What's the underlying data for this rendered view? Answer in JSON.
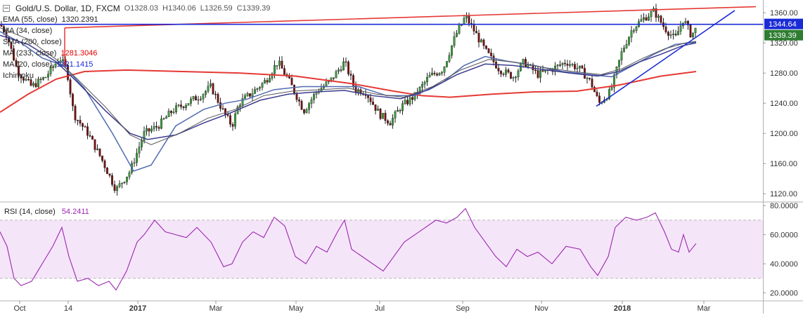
{
  "header": {
    "title": "Gold/U.S. Dollar, 1D, FXCM",
    "ohlc": [
      "O1328.03",
      "H1340.06",
      "L1326.59",
      "C1339.39"
    ]
  },
  "legend": [
    {
      "name": "EMA (55, close)",
      "value": "1320.2391",
      "color": "#333333"
    },
    {
      "name": "MA (34, close)",
      "value": "",
      "color": "#333333"
    },
    {
      "name": "SMA (200, close)",
      "value": "",
      "color": "#333333"
    },
    {
      "name": "MA (233, close)",
      "value": "1281.3046",
      "color": "#e00000"
    },
    {
      "name": "MA (20, close)",
      "value": "1321.1415",
      "color": "#1a2bd6"
    },
    {
      "name": "Ichimoku",
      "value": "",
      "color": "#333333"
    }
  ],
  "rsi_label": {
    "name": "RSI (14, close)",
    "value": "54.2411"
  },
  "price_tags": [
    {
      "text": "1344.64",
      "price": 1344.64,
      "bg": "#1a2bd6"
    },
    {
      "text": "1339.39",
      "price": 1339.39,
      "bg": "#2e7d32"
    }
  ],
  "chart_data": [
    {
      "type": "candlestick",
      "title": "Gold/U.S. Dollar, 1D, FXCM",
      "ylim": [
        1110,
        1375
      ],
      "y_ticks": [
        "1120.00",
        "1160.00",
        "1200.00",
        "1240.00",
        "1280.00",
        "1320.00",
        "1360.00"
      ],
      "x_ticks": [
        "Oct",
        "14",
        "2017",
        "Mar",
        "May",
        "Jul",
        "Sep",
        "Nov",
        "2018",
        "Mar"
      ],
      "price_path": [
        [
          0,
          1345
        ],
        [
          10,
          1330
        ],
        [
          25,
          1282
        ],
        [
          45,
          1262
        ],
        [
          65,
          1275
        ],
        [
          85,
          1300
        ],
        [
          95,
          1285
        ],
        [
          105,
          1225
        ],
        [
          125,
          1200
        ],
        [
          145,
          1165
        ],
        [
          165,
          1125
        ],
        [
          185,
          1150
        ],
        [
          205,
          1200
        ],
        [
          225,
          1210
        ],
        [
          245,
          1230
        ],
        [
          265,
          1240
        ],
        [
          285,
          1250
        ],
        [
          300,
          1262
        ],
        [
          318,
          1228
        ],
        [
          330,
          1210
        ],
        [
          340,
          1240
        ],
        [
          360,
          1255
        ],
        [
          378,
          1270
        ],
        [
          395,
          1295
        ],
        [
          412,
          1268
        ],
        [
          432,
          1230
        ],
        [
          450,
          1255
        ],
        [
          470,
          1270
        ],
        [
          490,
          1295
        ],
        [
          505,
          1258
        ],
        [
          520,
          1255
        ],
        [
          540,
          1225
        ],
        [
          555,
          1215
        ],
        [
          570,
          1235
        ],
        [
          590,
          1250
        ],
        [
          610,
          1275
        ],
        [
          630,
          1285
        ],
        [
          648,
          1330
        ],
        [
          662,
          1355
        ],
        [
          675,
          1335
        ],
        [
          690,
          1310
        ],
        [
          710,
          1285
        ],
        [
          730,
          1275
        ],
        [
          745,
          1295
        ],
        [
          765,
          1278
        ],
        [
          785,
          1285
        ],
        [
          805,
          1295
        ],
        [
          825,
          1285
        ],
        [
          840,
          1268
        ],
        [
          852,
          1240
        ],
        [
          868,
          1255
        ],
        [
          885,
          1310
        ],
        [
          900,
          1340
        ],
        [
          915,
          1352
        ],
        [
          930,
          1362
        ],
        [
          945,
          1340
        ],
        [
          960,
          1325
        ],
        [
          972,
          1352
        ],
        [
          983,
          1330
        ],
        [
          990,
          1339
        ]
      ],
      "series": [
        {
          "name": "MA (233, close)",
          "color": "#e53935",
          "width": 2,
          "points": [
            [
              0,
              1228
            ],
            [
              40,
              1252
            ],
            [
              80,
              1272
            ],
            [
              120,
              1282
            ],
            [
              180,
              1284
            ],
            [
              260,
              1282
            ],
            [
              340,
              1280
            ],
            [
              420,
              1276
            ],
            [
              500,
              1266
            ],
            [
              560,
              1256
            ],
            [
              600,
              1250
            ],
            [
              640,
              1248
            ],
            [
              700,
              1252
            ],
            [
              760,
              1255
            ],
            [
              820,
              1256
            ],
            [
              880,
              1264
            ],
            [
              940,
              1276
            ],
            [
              990,
              1282
            ]
          ]
        },
        {
          "name": "MA (20, close)",
          "color": "#4f6bb0",
          "width": 1.5,
          "points": [
            [
              0,
              1335
            ],
            [
              30,
              1320
            ],
            [
              60,
              1300
            ],
            [
              90,
              1290
            ],
            [
              120,
              1260
            ],
            [
              160,
              1200
            ],
            [
              190,
              1150
            ],
            [
              215,
              1158
            ],
            [
              250,
              1210
            ],
            [
              290,
              1232
            ],
            [
              320,
              1240
            ],
            [
              350,
              1245
            ],
            [
              390,
              1258
            ],
            [
              430,
              1262
            ],
            [
              470,
              1262
            ],
            [
              510,
              1262
            ],
            [
              550,
              1250
            ],
            [
              590,
              1250
            ],
            [
              630,
              1268
            ],
            [
              660,
              1290
            ],
            [
              690,
              1302
            ],
            [
              720,
              1296
            ],
            [
              760,
              1290
            ],
            [
              800,
              1282
            ],
            [
              840,
              1278
            ],
            [
              870,
              1275
            ],
            [
              900,
              1290
            ],
            [
              930,
              1305
            ],
            [
              960,
              1318
            ],
            [
              990,
              1321
            ]
          ]
        },
        {
          "name": "EMA (55, close)",
          "color": "#3b3b8f",
          "width": 1.5,
          "points": [
            [
              0,
              1330
            ],
            [
              40,
              1318
            ],
            [
              80,
              1295
            ],
            [
              110,
              1268
            ],
            [
              150,
              1230
            ],
            [
              185,
              1200
            ],
            [
              210,
              1192
            ],
            [
              250,
              1198
            ],
            [
              290,
              1214
            ],
            [
              330,
              1228
            ],
            [
              370,
              1244
            ],
            [
              410,
              1252
            ],
            [
              450,
              1255
            ],
            [
              490,
              1257
            ],
            [
              530,
              1250
            ],
            [
              570,
              1246
            ],
            [
              610,
              1258
            ],
            [
              650,
              1278
            ],
            [
              690,
              1292
            ],
            [
              730,
              1290
            ],
            [
              770,
              1285
            ],
            [
              810,
              1280
            ],
            [
              850,
              1276
            ],
            [
              880,
              1282
            ],
            [
              910,
              1295
            ],
            [
              940,
              1305
            ],
            [
              970,
              1316
            ],
            [
              990,
              1320
            ]
          ]
        },
        {
          "name": "MA (34, close)",
          "color": "#555555",
          "width": 1,
          "points": [
            [
              0,
              1340
            ],
            [
              40,
              1325
            ],
            [
              80,
              1298
            ],
            [
              110,
              1272
            ],
            [
              150,
              1235
            ],
            [
              185,
              1198
            ],
            [
              215,
              1185
            ],
            [
              255,
              1200
            ],
            [
              295,
              1220
            ],
            [
              335,
              1232
            ],
            [
              375,
              1250
            ],
            [
              415,
              1256
            ],
            [
              455,
              1258
            ],
            [
              495,
              1260
            ],
            [
              535,
              1252
            ],
            [
              575,
              1248
            ],
            [
              615,
              1262
            ],
            [
              655,
              1284
            ],
            [
              695,
              1298
            ],
            [
              735,
              1294
            ],
            [
              775,
              1287
            ],
            [
              815,
              1282
            ],
            [
              855,
              1278
            ],
            [
              885,
              1286
            ],
            [
              915,
              1300
            ],
            [
              945,
              1312
            ],
            [
              975,
              1320
            ],
            [
              990,
              1322
            ]
          ]
        }
      ],
      "trendlines": [
        {
          "name": "resistance",
          "color": "#e53935",
          "from": [
            92,
            1340
          ],
          "to": [
            1075,
            1368
          ]
        },
        {
          "name": "support",
          "color": "#1a2bd6",
          "from": [
            848,
            1236
          ],
          "to": [
            1045,
            1363
          ]
        },
        {
          "name": "horizontal",
          "color": "#1a2bd6",
          "from": [
            0,
            1344.64
          ],
          "to": [
            1085,
            1344.64
          ]
        }
      ]
    },
    {
      "type": "line",
      "title": "RSI (14, close)",
      "ylim": [
        15,
        82
      ],
      "y_ticks": [
        "20.0000",
        "40.0000",
        "60.0000",
        "80.0000"
      ],
      "levels": [
        70,
        30
      ],
      "series": [
        {
          "name": "RSI (14, close)",
          "color": "#9c27b0",
          "points": [
            [
              0,
              62
            ],
            [
              10,
              52
            ],
            [
              20,
              30
            ],
            [
              30,
              25
            ],
            [
              45,
              28
            ],
            [
              60,
              40
            ],
            [
              75,
              52
            ],
            [
              88,
              65
            ],
            [
              98,
              45
            ],
            [
              110,
              28
            ],
            [
              125,
              30
            ],
            [
              140,
              25
            ],
            [
              155,
              28
            ],
            [
              165,
              22
            ],
            [
              180,
              35
            ],
            [
              195,
              55
            ],
            [
              205,
              60
            ],
            [
              220,
              70
            ],
            [
              235,
              62
            ],
            [
              250,
              60
            ],
            [
              265,
              58
            ],
            [
              280,
              65
            ],
            [
              300,
              55
            ],
            [
              318,
              38
            ],
            [
              330,
              40
            ],
            [
              345,
              55
            ],
            [
              360,
              62
            ],
            [
              375,
              58
            ],
            [
              390,
              72
            ],
            [
              405,
              66
            ],
            [
              420,
              45
            ],
            [
              435,
              40
            ],
            [
              450,
              52
            ],
            [
              465,
              48
            ],
            [
              480,
              62
            ],
            [
              490,
              70
            ],
            [
              500,
              50
            ],
            [
              515,
              45
            ],
            [
              530,
              40
            ],
            [
              545,
              35
            ],
            [
              560,
              45
            ],
            [
              575,
              55
            ],
            [
              590,
              60
            ],
            [
              605,
              65
            ],
            [
              620,
              70
            ],
            [
              635,
              68
            ],
            [
              650,
              72
            ],
            [
              662,
              78
            ],
            [
              675,
              65
            ],
            [
              690,
              55
            ],
            [
              705,
              45
            ],
            [
              720,
              38
            ],
            [
              735,
              50
            ],
            [
              750,
              45
            ],
            [
              765,
              48
            ],
            [
              785,
              40
            ],
            [
              805,
              52
            ],
            [
              825,
              50
            ],
            [
              840,
              38
            ],
            [
              850,
              32
            ],
            [
              865,
              45
            ],
            [
              875,
              65
            ],
            [
              890,
              72
            ],
            [
              905,
              70
            ],
            [
              920,
              72
            ],
            [
              932,
              75
            ],
            [
              945,
              62
            ],
            [
              955,
              50
            ],
            [
              965,
              48
            ],
            [
              972,
              60
            ],
            [
              980,
              48
            ],
            [
              990,
              54
            ]
          ]
        }
      ]
    }
  ]
}
